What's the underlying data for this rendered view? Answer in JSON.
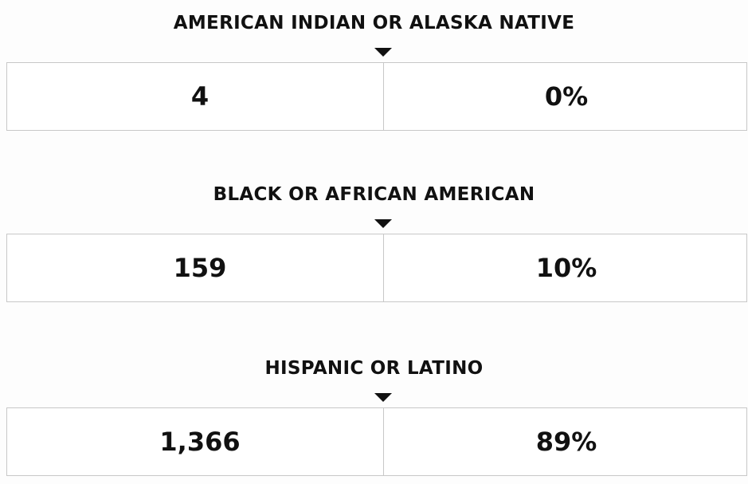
{
  "groups": [
    {
      "title": "AMERICAN INDIAN OR ALASKA NATIVE",
      "count": "4",
      "percent": "0%"
    },
    {
      "title": "BLACK OR AFRICAN AMERICAN",
      "count": "159",
      "percent": "10%"
    },
    {
      "title": "HISPANIC OR LATINO",
      "count": "1,366",
      "percent": "89%"
    }
  ]
}
